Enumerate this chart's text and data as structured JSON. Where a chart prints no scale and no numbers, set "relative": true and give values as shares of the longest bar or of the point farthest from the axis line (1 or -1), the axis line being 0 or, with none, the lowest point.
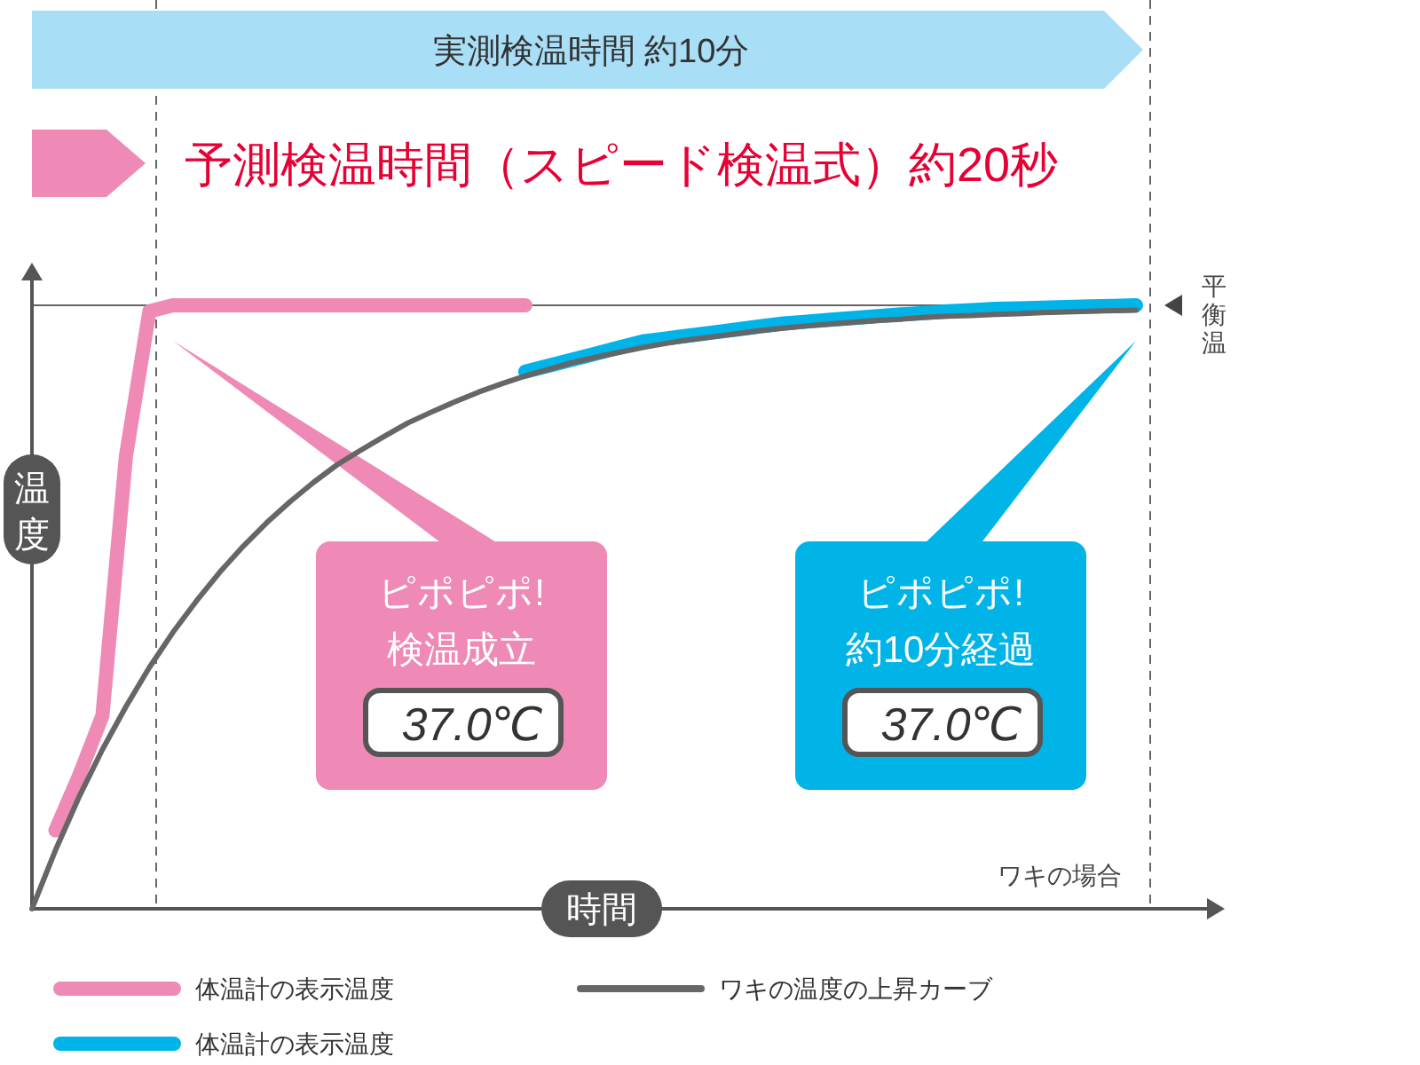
{
  "chart_data": {
    "type": "line",
    "relative": true,
    "xlabel": "時間",
    "ylabel": "温度",
    "grid": false,
    "legend": "bottom",
    "line_style": "solid",
    "marker": "none",
    "categories": [
      null,
      null,
      null,
      null,
      null,
      null,
      null,
      null,
      null,
      null,
      null,
      null,
      null,
      null,
      null,
      null,
      null,
      null,
      null,
      null,
      null,
      null,
      null,
      null,
      null,
      null,
      null,
      null,
      null,
      null,
      null,
      null,
      null,
      null,
      null,
      null,
      null,
      null,
      null,
      null,
      null,
      null,
      null,
      null,
      null,
      null,
      null,
      null
    ],
    "series": [
      {
        "name": "体温計の表示温度",
        "color": "#ee8ab5",
        "values": [
          null,
          0.13,
          0.22,
          0.32,
          0.75,
          0.99,
          1,
          1,
          1,
          1,
          1,
          1,
          1,
          1,
          1,
          1,
          1,
          1,
          1,
          1,
          1,
          1,
          null,
          null,
          null,
          null,
          null,
          null,
          null,
          null,
          null,
          null,
          null,
          null,
          null,
          null,
          null,
          null,
          null,
          null,
          null,
          null,
          null,
          null,
          null,
          null,
          null,
          null
        ]
      },
      {
        "name": "体温計の表示温度",
        "color": "#00b4e8",
        "values": [
          null,
          null,
          null,
          null,
          null,
          null,
          null,
          null,
          null,
          null,
          null,
          null,
          null,
          null,
          null,
          null,
          null,
          null,
          null,
          null,
          null,
          0.89,
          0.9,
          0.91,
          0.92,
          0.93,
          0.94,
          0.945,
          0.95,
          0.955,
          0.96,
          0.965,
          0.97,
          0.973,
          0.976,
          0.979,
          0.982,
          0.985,
          0.987,
          0.99,
          0.992,
          0.994,
          0.995,
          0.996,
          0.997,
          0.998,
          0.999,
          1
        ]
      },
      {
        "name": "ワキの温度の上昇カーブ",
        "color": "#666666",
        "values": [
          0,
          0.097,
          0.185,
          0.264,
          0.335,
          0.4,
          0.458,
          0.51,
          0.558,
          0.601,
          0.64,
          0.675,
          0.707,
          0.736,
          0.76,
          0.783,
          0.805,
          0.823,
          0.84,
          0.856,
          0.87,
          0.883,
          0.894,
          0.905,
          0.914,
          0.922,
          0.93,
          0.937,
          0.943,
          0.948,
          0.953,
          0.958,
          0.962,
          0.966,
          0.969,
          0.972,
          0.975,
          0.977,
          0.98,
          0.982,
          0.983,
          0.985,
          0.986,
          0.988,
          0.989,
          0.99,
          0.991,
          0.992
        ]
      }
    ],
    "ref_lines": [
      {
        "axis": "y",
        "value": 1,
        "label": "平衡温",
        "color": "#666666",
        "line_style": "solid"
      }
    ],
    "annotations": [
      "実測検温時間 約10分",
      "予測検温時間（スピード検温式）約20秒",
      "ピポピポ!\n検温成立\n37.0℃",
      "ピポピポ!\n約10分経過\n37.0℃",
      "ワキの場合"
    ]
  }
}
